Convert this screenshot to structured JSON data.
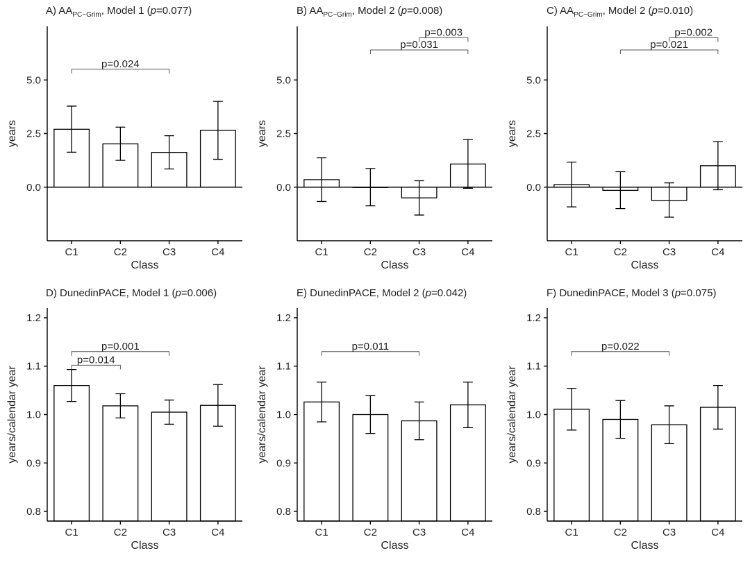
{
  "chart_data": [
    {
      "type": "bar",
      "title_prefix": "A) AA",
      "title_sub": "PC−Grim",
      "title_mid": ", Model 1 (",
      "title_p": "p",
      "title_suffix": "=0.077)",
      "xlabel": "Class",
      "ylabel": "years",
      "categories": [
        "C1",
        "C2",
        "C3",
        "C4"
      ],
      "values": [
        2.7,
        2.02,
        1.62,
        2.65
      ],
      "error_low": [
        1.63,
        1.25,
        0.85,
        1.3
      ],
      "error_high": [
        3.78,
        2.8,
        2.4,
        4.0
      ],
      "ylim": [
        -2.5,
        7.5
      ],
      "ticks": [
        0.0,
        2.5,
        5.0
      ],
      "tick_labels": [
        "0.0",
        "2.5",
        "5.0"
      ],
      "baseline_line": true,
      "brackets": [
        {
          "from": "C1",
          "to": "C3",
          "y": 5.5,
          "label": "p=0.024"
        }
      ]
    },
    {
      "type": "bar",
      "title_prefix": "B) AA",
      "title_sub": "PC−Grim",
      "title_mid": ", Model 2 (",
      "title_p": "p",
      "title_suffix": "=0.008)",
      "xlabel": "Class",
      "ylabel": "years",
      "categories": [
        "C1",
        "C2",
        "C3",
        "C4"
      ],
      "values": [
        0.35,
        0.0,
        -0.5,
        1.08
      ],
      "error_low": [
        -0.67,
        -0.87,
        -1.3,
        -0.05
      ],
      "error_high": [
        1.37,
        0.87,
        0.3,
        2.22
      ],
      "ylim": [
        -2.5,
        7.5
      ],
      "ticks": [
        0.0,
        2.5,
        5.0
      ],
      "tick_labels": [
        "0.0",
        "2.5",
        "5.0"
      ],
      "baseline_line": true,
      "brackets": [
        {
          "from": "C2",
          "to": "C4",
          "y": 6.4,
          "label": "p=0.031"
        },
        {
          "from": "C3",
          "to": "C4",
          "y": 6.97,
          "label": "p=0.003"
        }
      ]
    },
    {
      "type": "bar",
      "title_prefix": "C) AA",
      "title_sub": "PC−Grim",
      "title_mid": ", Model 2 (",
      "title_p": "p",
      "title_suffix": "=0.010)",
      "xlabel": "Class",
      "ylabel": "years",
      "categories": [
        "C1",
        "C2",
        "C3",
        "C4"
      ],
      "values": [
        0.12,
        -0.15,
        -0.62,
        1.0
      ],
      "error_low": [
        -0.92,
        -1.0,
        -1.4,
        -0.12
      ],
      "error_high": [
        1.17,
        0.72,
        0.2,
        2.12
      ],
      "ylim": [
        -2.5,
        7.5
      ],
      "ticks": [
        0.0,
        2.5,
        5.0
      ],
      "tick_labels": [
        "0.0",
        "2.5",
        "5.0"
      ],
      "baseline_line": true,
      "brackets": [
        {
          "from": "C2",
          "to": "C4",
          "y": 6.4,
          "label": "p=0.021"
        },
        {
          "from": "C3",
          "to": "C4",
          "y": 6.97,
          "label": "p=0.002"
        }
      ]
    },
    {
      "type": "bar",
      "title_prefix": "D) DunedinPACE, Model 1 (",
      "title_sub": "",
      "title_mid": "",
      "title_p": "p",
      "title_suffix": "=0.006)",
      "xlabel": "Class",
      "ylabel": "years/calendar year",
      "categories": [
        "C1",
        "C2",
        "C3",
        "C4"
      ],
      "values": [
        1.06,
        1.018,
        1.005,
        1.019
      ],
      "error_low": [
        1.027,
        0.993,
        0.98,
        0.976
      ],
      "error_high": [
        1.093,
        1.043,
        1.03,
        1.062
      ],
      "ylim": [
        0.78,
        1.22
      ],
      "ticks": [
        0.8,
        0.9,
        1.0,
        1.1,
        1.2
      ],
      "tick_labels": [
        "0.8",
        "0.9",
        "1.0",
        "1.1",
        "1.2"
      ],
      "baseline_line": false,
      "brackets": [
        {
          "from": "C1",
          "to": "C2",
          "y": 1.102,
          "label": "p=0.014"
        },
        {
          "from": "C1",
          "to": "C3",
          "y": 1.13,
          "label": "p=0.001"
        }
      ]
    },
    {
      "type": "bar",
      "title_prefix": "E) DunedinPACE, Model 2 (",
      "title_sub": "",
      "title_mid": "",
      "title_p": "p",
      "title_suffix": "=0.042)",
      "xlabel": "Class",
      "ylabel": "years/calendar year",
      "categories": [
        "C1",
        "C2",
        "C3",
        "C4"
      ],
      "values": [
        1.026,
        1.0,
        0.987,
        1.02
      ],
      "error_low": [
        0.985,
        0.961,
        0.948,
        0.973
      ],
      "error_high": [
        1.067,
        1.039,
        1.026,
        1.067
      ],
      "ylim": [
        0.78,
        1.22
      ],
      "ticks": [
        0.8,
        0.9,
        1.0,
        1.1,
        1.2
      ],
      "tick_labels": [
        "0.8",
        "0.9",
        "1.0",
        "1.1",
        "1.2"
      ],
      "baseline_line": false,
      "brackets": [
        {
          "from": "C1",
          "to": "C3",
          "y": 1.13,
          "label": "p=0.011"
        }
      ]
    },
    {
      "type": "bar",
      "title_prefix": "F) DunedinPACE, Model 3 (",
      "title_sub": "",
      "title_mid": "",
      "title_p": "p",
      "title_suffix": "=0.075)",
      "xlabel": "Class",
      "ylabel": "years/calendar year",
      "categories": [
        "C1",
        "C2",
        "C3",
        "C4"
      ],
      "values": [
        1.011,
        0.99,
        0.979,
        1.015
      ],
      "error_low": [
        0.968,
        0.951,
        0.94,
        0.97
      ],
      "error_high": [
        1.054,
        1.029,
        1.018,
        1.06
      ],
      "ylim": [
        0.78,
        1.22
      ],
      "ticks": [
        0.8,
        0.9,
        1.0,
        1.1,
        1.2
      ],
      "tick_labels": [
        "0.8",
        "0.9",
        "1.0",
        "1.1",
        "1.2"
      ],
      "baseline_line": false,
      "brackets": [
        {
          "from": "C1",
          "to": "C3",
          "y": 1.13,
          "label": "p=0.022"
        }
      ]
    }
  ]
}
